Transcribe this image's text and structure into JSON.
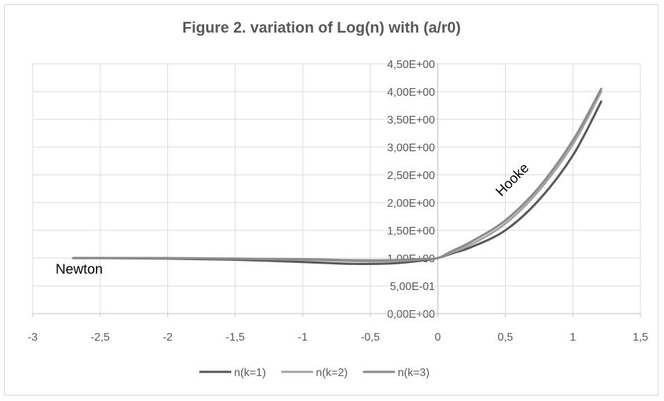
{
  "chart_data": {
    "type": "line",
    "title": "Figure 2. variation of Log(n) with (a/r0)",
    "xlabel": "",
    "ylabel": "",
    "xlim": [
      -3,
      1.5
    ],
    "ylim": [
      0,
      4.5
    ],
    "x_ticks": [
      -3,
      -2.5,
      -2,
      -1.5,
      -1,
      -0.5,
      0,
      0.5,
      1,
      1.5
    ],
    "x_tick_labels": [
      "-3",
      "-2,5",
      "-2",
      "-1,5",
      "-1",
      "-0,5",
      "0",
      "0,5",
      "1",
      "1,5"
    ],
    "y_ticks": [
      0,
      0.5,
      1,
      1.5,
      2,
      2.5,
      3,
      3.5,
      4,
      4.5
    ],
    "y_tick_labels": [
      "0,00E+00",
      "5,00E-01",
      "1,00E+00",
      "1,50E+00",
      "2,00E+00",
      "2,50E+00",
      "3,00E+00",
      "3,50E+00",
      "4,00E+00",
      "4,50E+00"
    ],
    "grid": true,
    "legend_position": "bottom",
    "series": [
      {
        "name": "n(k=1)",
        "color": "#595959",
        "x": [
          -2.7,
          -2.5,
          -2.0,
          -1.5,
          -1.0,
          -0.7,
          -0.5,
          -0.3,
          -0.1,
          0.0,
          0.1,
          0.25,
          0.5,
          0.75,
          1.0,
          1.21
        ],
        "y": [
          1.0,
          1.0,
          0.99,
          0.97,
          0.93,
          0.9,
          0.895,
          0.91,
          0.96,
          1.0,
          1.08,
          1.2,
          1.5,
          2.05,
          2.85,
          3.82
        ]
      },
      {
        "name": "n(k=2)",
        "color": "#a6a6a6",
        "x": [
          -2.7,
          -2.5,
          -2.0,
          -1.5,
          -1.0,
          -0.7,
          -0.5,
          -0.3,
          -0.1,
          0.0,
          0.1,
          0.25,
          0.5,
          0.75,
          1.0,
          1.21
        ],
        "y": [
          1.0,
          1.0,
          1.0,
          0.99,
          0.97,
          0.95,
          0.94,
          0.95,
          0.98,
          1.0,
          1.1,
          1.25,
          1.62,
          2.22,
          3.05,
          4.0
        ]
      },
      {
        "name": "n(k=3)",
        "color": "#8c8c8c",
        "x": [
          -2.7,
          -2.5,
          -2.0,
          -1.5,
          -1.0,
          -0.7,
          -0.5,
          -0.3,
          -0.1,
          0.0,
          0.1,
          0.25,
          0.5,
          0.75,
          1.0,
          1.21
        ],
        "y": [
          1.0,
          1.0,
          1.0,
          0.99,
          0.98,
          0.965,
          0.96,
          0.965,
          0.985,
          1.0,
          1.12,
          1.3,
          1.68,
          2.28,
          3.12,
          4.05
        ]
      }
    ],
    "annotations": [
      {
        "text": "Newton"
      },
      {
        "text": "Hooke"
      }
    ]
  }
}
